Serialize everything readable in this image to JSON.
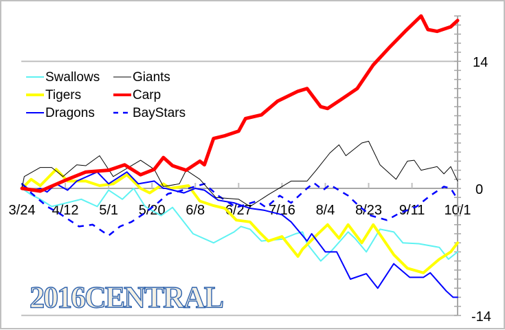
{
  "chart_data": {
    "type": "line",
    "title": "",
    "logo_text": "2016CENTRAL",
    "xlabel": "",
    "ylabel": "",
    "x_start": "3/24",
    "x_end": "10/1",
    "x_ticks": [
      "3/24",
      "4/12",
      "5/1",
      "5/20",
      "6/8",
      "6/27",
      "7/16",
      "8/4",
      "8/23",
      "9/11",
      "10/1"
    ],
    "y_ticks": [
      14,
      0,
      -14
    ],
    "ylim": [
      -14,
      19
    ],
    "y_minor_step": 1,
    "grid": "horizontal at 14, 0, -14",
    "y_axis_position": "right",
    "legend_position": "upper-left",
    "series": [
      {
        "name": "Swallows",
        "color": "#5ef2f2",
        "width": 2,
        "dash": "solid",
        "points": [
          [
            "3/24",
            0
          ],
          [
            "3/28",
            -0.7
          ],
          [
            "4/1",
            -1.2
          ],
          [
            "4/6",
            -2
          ],
          [
            "4/11",
            -1.7
          ],
          [
            "4/19",
            -1.2
          ],
          [
            "4/26",
            -2
          ],
          [
            "5/1",
            -0.2
          ],
          [
            "5/7",
            -1.2
          ],
          [
            "5/12",
            0
          ],
          [
            "5/17",
            -2
          ],
          [
            "5/24",
            -3
          ],
          [
            "5/29",
            -2.1
          ],
          [
            "6/7",
            -5
          ],
          [
            "6/16",
            -6
          ],
          [
            "6/25",
            -4.8
          ],
          [
            "6/28",
            -4.2
          ],
          [
            "7/2",
            -4.5
          ],
          [
            "7/7",
            -5.8
          ],
          [
            "7/16",
            -5.6
          ],
          [
            "7/22",
            -5
          ],
          [
            "7/27",
            -6.1
          ],
          [
            "7/25",
            -4.8
          ],
          [
            "8/2",
            -8
          ],
          [
            "8/7",
            -6.8
          ],
          [
            "8/14",
            -4.8
          ],
          [
            "8/17",
            -5.5
          ],
          [
            "8/22",
            -7
          ],
          [
            "8/28",
            -4.5
          ],
          [
            "9/3",
            -4.8
          ],
          [
            "9/7",
            -6
          ],
          [
            "9/14",
            -6.1
          ],
          [
            "9/23",
            -6.5
          ],
          [
            "9/27",
            -7.8
          ],
          [
            "10/1",
            -7
          ]
        ]
      },
      {
        "name": "Giants",
        "color": "#000000",
        "width": 1,
        "dash": "solid",
        "points": [
          [
            "3/24",
            0
          ],
          [
            "3/25",
            1.3
          ],
          [
            "4/1",
            2.3
          ],
          [
            "4/6",
            2.3
          ],
          [
            "4/11",
            1.3
          ],
          [
            "4/17",
            2.6
          ],
          [
            "4/21",
            2.5
          ],
          [
            "4/27",
            3.6
          ],
          [
            "5/3",
            1.3
          ],
          [
            "5/15",
            3.1
          ],
          [
            "5/21",
            2.1
          ],
          [
            "5/25",
            0.2
          ],
          [
            "6/1",
            0.5
          ],
          [
            "6/4",
            2
          ],
          [
            "6/10",
            1
          ],
          [
            "6/17",
            -1
          ],
          [
            "6/27",
            -1.2
          ],
          [
            "7/2",
            -2
          ],
          [
            "7/10",
            -0.7
          ],
          [
            "7/20",
            0.8
          ],
          [
            "7/27",
            0.8
          ],
          [
            "7/31",
            2
          ],
          [
            "8/6",
            3.9
          ],
          [
            "8/10",
            4.8
          ],
          [
            "8/13",
            3.6
          ],
          [
            "8/20",
            5
          ],
          [
            "8/23",
            5.2
          ],
          [
            "8/28",
            2.6
          ],
          [
            "9/4",
            1
          ],
          [
            "9/9",
            3
          ],
          [
            "9/12",
            3.1
          ],
          [
            "9/15",
            2
          ],
          [
            "9/22",
            2.4
          ],
          [
            "9/25",
            1.6
          ],
          [
            "9/28",
            2.4
          ],
          [
            "10/1",
            0.8
          ]
        ]
      },
      {
        "name": "Tigers",
        "color": "#ffff00",
        "width": 4,
        "dash": "solid",
        "points": [
          [
            "3/24",
            0
          ],
          [
            "3/28",
            1
          ],
          [
            "4/1",
            0.3
          ],
          [
            "4/8",
            2.1
          ],
          [
            "4/13",
            0.8
          ],
          [
            "4/21",
            0.8
          ],
          [
            "4/27",
            0.3
          ],
          [
            "5/3",
            0.5
          ],
          [
            "5/9",
            1.5
          ],
          [
            "5/15",
            0
          ],
          [
            "5/19",
            -0.5
          ],
          [
            "5/25",
            0.5
          ],
          [
            "5/28",
            0
          ],
          [
            "6/5",
            0.3
          ],
          [
            "6/10",
            -1.4
          ],
          [
            "6/16",
            -1.9
          ],
          [
            "6/21",
            -2.2
          ],
          [
            "6/26",
            -3.5
          ],
          [
            "7/2",
            -3.7
          ],
          [
            "7/6",
            -4.8
          ],
          [
            "7/10",
            -5.8
          ],
          [
            "7/16",
            -5.3
          ],
          [
            "7/23",
            -7.5
          ],
          [
            "7/25",
            -6.7
          ],
          [
            "7/31",
            -5.2
          ],
          [
            "8/5",
            -4
          ],
          [
            "8/10",
            -5.5
          ],
          [
            "8/14",
            -4
          ],
          [
            "8/20",
            -6
          ],
          [
            "8/25",
            -4
          ],
          [
            "9/3",
            -7.3
          ],
          [
            "9/9",
            -8.8
          ],
          [
            "9/16",
            -9.3
          ],
          [
            "9/23",
            -7.8
          ],
          [
            "9/28",
            -7
          ],
          [
            "10/1",
            -6
          ]
        ]
      },
      {
        "name": "Carp",
        "color": "#ff0000",
        "width": 5,
        "dash": "solid",
        "points": [
          [
            "3/24",
            0
          ],
          [
            "4/1",
            -0.3
          ],
          [
            "4/13",
            1
          ],
          [
            "4/21",
            1.8
          ],
          [
            "5/1",
            2
          ],
          [
            "5/8",
            2.6
          ],
          [
            "5/15",
            1.5
          ],
          [
            "5/21",
            2.1
          ],
          [
            "5/25",
            3.4
          ],
          [
            "5/29",
            2.5
          ],
          [
            "6/4",
            2
          ],
          [
            "6/10",
            3
          ],
          [
            "6/12",
            2.6
          ],
          [
            "6/16",
            5.5
          ],
          [
            "6/21",
            5.8
          ],
          [
            "6/27",
            6.3
          ],
          [
            "6/30",
            7.7
          ],
          [
            "7/7",
            8.1
          ],
          [
            "7/14",
            9.6
          ],
          [
            "7/23",
            10.7
          ],
          [
            "7/27",
            11
          ],
          [
            "8/2",
            9
          ],
          [
            "8/5",
            8.8
          ],
          [
            "8/11",
            9.8
          ],
          [
            "8/18",
            11
          ],
          [
            "8/25",
            13.6
          ],
          [
            "9/1",
            15.5
          ],
          [
            "9/8",
            17.3
          ],
          [
            "9/15",
            19
          ],
          [
            "9/18",
            17.5
          ],
          [
            "9/22",
            17.3
          ],
          [
            "9/28",
            17.8
          ],
          [
            "10/1",
            18.5
          ]
        ]
      },
      {
        "name": "Dragons",
        "color": "#0000ff",
        "width": 2,
        "dash": "solid",
        "points": [
          [
            "3/24",
            0.5
          ],
          [
            "3/28",
            -0.3
          ],
          [
            "4/1",
            0
          ],
          [
            "4/4",
            -0.4
          ],
          [
            "4/8",
            0.5
          ],
          [
            "4/13",
            -0.2
          ],
          [
            "4/17",
            0.8
          ],
          [
            "4/26",
            1.8
          ],
          [
            "5/1",
            0.5
          ],
          [
            "5/9",
            1.8
          ],
          [
            "5/14",
            0.5
          ],
          [
            "5/21",
            0.8
          ],
          [
            "5/25",
            0
          ],
          [
            "5/26",
            0
          ],
          [
            "6/3",
            -0.5
          ],
          [
            "6/8",
            0
          ],
          [
            "6/12",
            -0.2
          ],
          [
            "6/18",
            -1.3
          ],
          [
            "6/25",
            -1.6
          ],
          [
            "7/2",
            -2.2
          ],
          [
            "7/8",
            -2.4
          ],
          [
            "7/16",
            -2.9
          ],
          [
            "7/20",
            -3.7
          ],
          [
            "7/27",
            -5.8
          ],
          [
            "7/25",
            -5.2
          ],
          [
            "7/29",
            -5
          ],
          [
            "8/4",
            -7
          ],
          [
            "8/9",
            -7
          ],
          [
            "8/15",
            -10
          ],
          [
            "8/22",
            -9.4
          ],
          [
            "8/27",
            -11
          ],
          [
            "9/3",
            -8.3
          ],
          [
            "9/10",
            -9.8
          ],
          [
            "9/16",
            -9.8
          ],
          [
            "9/19",
            -9.3
          ],
          [
            "9/26",
            -11.3
          ],
          [
            "9/29",
            -12
          ],
          [
            "10/1",
            -12
          ]
        ]
      },
      {
        "name": "BayStars",
        "color": "#0000ff",
        "width": 2.5,
        "dash": "dashed",
        "points": [
          [
            "3/24",
            0.5
          ],
          [
            "3/28",
            -0.5
          ],
          [
            "4/4",
            -2
          ],
          [
            "4/9",
            -2.7
          ],
          [
            "4/18",
            -4.2
          ],
          [
            "4/24",
            -4
          ],
          [
            "5/1",
            -5.2
          ],
          [
            "5/6",
            -4.2
          ],
          [
            "5/11",
            -3.7
          ],
          [
            "5/17",
            -2.7
          ],
          [
            "5/23",
            -1.5
          ],
          [
            "5/27",
            -0.6
          ],
          [
            "6/1",
            -0.3
          ],
          [
            "6/12",
            0.5
          ],
          [
            "6/18",
            -0.8
          ],
          [
            "6/26",
            -2.1
          ],
          [
            "7/5",
            -1.4
          ],
          [
            "7/9",
            -2.1
          ],
          [
            "7/15",
            -0.8
          ],
          [
            "7/20",
            -1.6
          ],
          [
            "7/27",
            0
          ],
          [
            "7/30",
            0.6
          ],
          [
            "8/3",
            -0.2
          ],
          [
            "8/6",
            0.4
          ],
          [
            "8/14",
            -0.8
          ],
          [
            "8/19",
            -2
          ],
          [
            "8/24",
            -3
          ],
          [
            "8/31",
            -3.5
          ],
          [
            "9/5",
            -2.8
          ],
          [
            "9/13",
            -2
          ],
          [
            "9/19",
            -0.8
          ],
          [
            "9/25",
            0.2
          ],
          [
            "9/28",
            0
          ],
          [
            "9/30",
            -0.8
          ]
        ]
      }
    ]
  }
}
